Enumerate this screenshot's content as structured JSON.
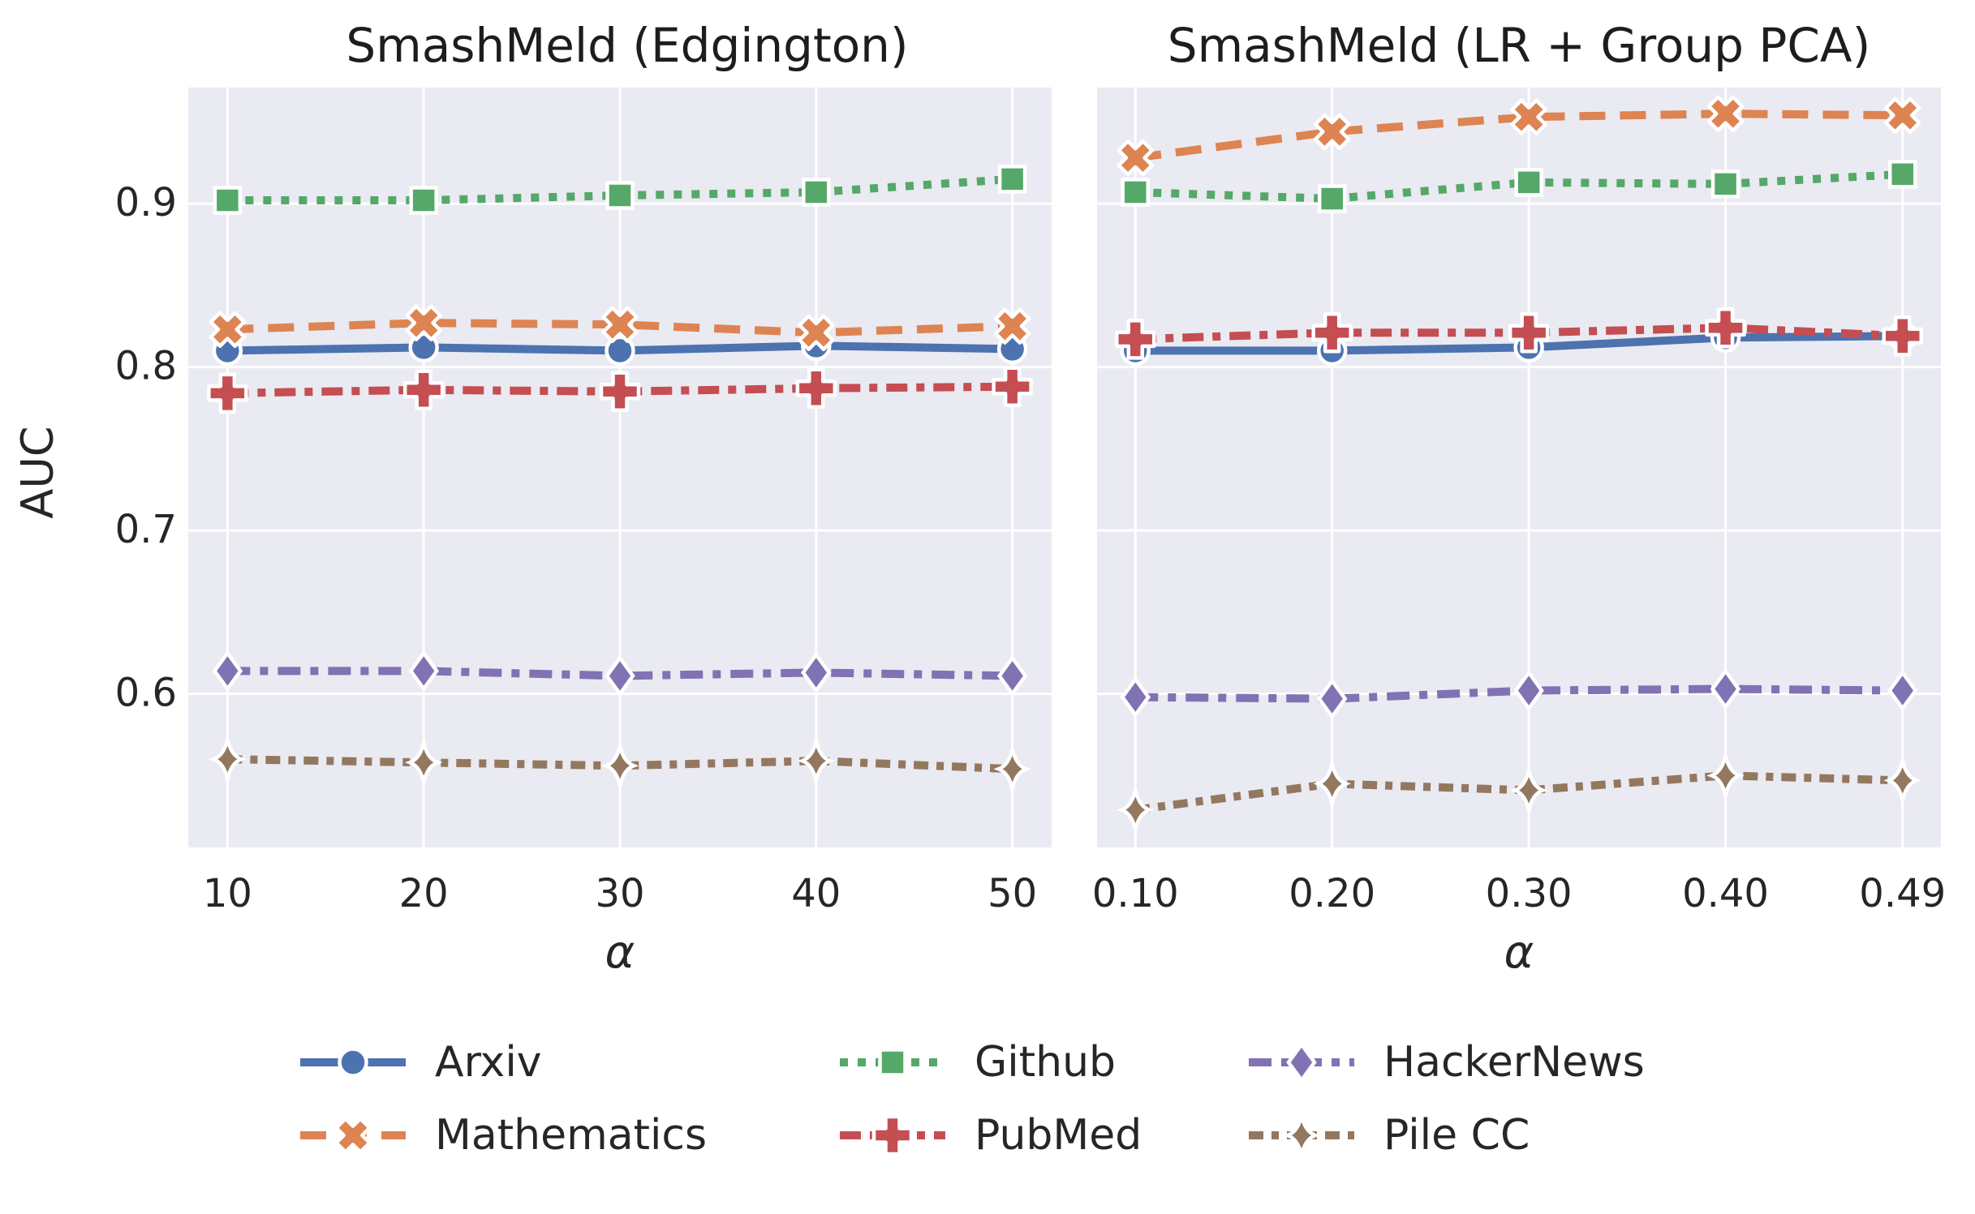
{
  "figure": {
    "background": "#ffffff",
    "panel_background": "#eaeaf2",
    "grid_color": "#ffffff",
    "text_color": "#262626"
  },
  "ylabel": "AUC",
  "series_styles": {
    "Arxiv": {
      "color": "#4C72B0",
      "marker": "circle",
      "dash": ""
    },
    "Mathematics": {
      "color": "#DD8452",
      "marker": "xmark",
      "dash": "32 18"
    },
    "Github": {
      "color": "#55A868",
      "marker": "square",
      "dash": "10 12"
    },
    "PubMed": {
      "color": "#C44E52",
      "marker": "plus",
      "dash": "26 11 10 11"
    },
    "HackerNews": {
      "color": "#8172B3",
      "marker": "diamond",
      "dash": "28 12 10 12"
    },
    "Pile CC": {
      "color": "#937860",
      "marker": "star4",
      "dash": "18 10 9 10"
    }
  },
  "chart_data": [
    {
      "type": "line",
      "title": "SmashMeld (Edgington)",
      "xlabel": "α",
      "ylabel": "AUC",
      "x": [
        10,
        20,
        30,
        40,
        50
      ],
      "xtick_labels": [
        "10",
        "20",
        "30",
        "40",
        "50"
      ],
      "xlim": [
        8,
        52
      ],
      "ylim": [
        0.506,
        0.971
      ],
      "yticks": [
        0.6,
        0.7,
        0.8,
        0.9
      ],
      "ytick_labels": [
        "0.6",
        "0.7",
        "0.8",
        "0.9"
      ],
      "grid": true,
      "series": [
        {
          "name": "Arxiv",
          "values": [
            0.81,
            0.812,
            0.81,
            0.813,
            0.811
          ]
        },
        {
          "name": "Mathematics",
          "values": [
            0.823,
            0.827,
            0.826,
            0.821,
            0.825
          ]
        },
        {
          "name": "Github",
          "values": [
            0.902,
            0.902,
            0.905,
            0.907,
            0.915
          ]
        },
        {
          "name": "PubMed",
          "values": [
            0.784,
            0.786,
            0.785,
            0.787,
            0.788
          ]
        },
        {
          "name": "HackerNews",
          "values": [
            0.614,
            0.614,
            0.611,
            0.613,
            0.611
          ]
        },
        {
          "name": "Pile CC",
          "values": [
            0.56,
            0.558,
            0.556,
            0.559,
            0.554
          ]
        }
      ]
    },
    {
      "type": "line",
      "title": "SmashMeld (LR + Group PCA)",
      "xlabel": "α",
      "ylabel": "AUC",
      "x": [
        0.1,
        0.2,
        0.3,
        0.4,
        0.49
      ],
      "xtick_labels": [
        "0.10",
        "0.20",
        "0.30",
        "0.40",
        "0.49"
      ],
      "xlim": [
        0.0805,
        0.5095
      ],
      "ylim": [
        0.506,
        0.971
      ],
      "yticks": [
        0.6,
        0.7,
        0.8,
        0.9
      ],
      "ytick_labels": [
        "0.6",
        "0.7",
        "0.8",
        "0.9"
      ],
      "grid": true,
      "series": [
        {
          "name": "Arxiv",
          "values": [
            0.81,
            0.81,
            0.812,
            0.818,
            0.819
          ]
        },
        {
          "name": "Mathematics",
          "values": [
            0.928,
            0.944,
            0.953,
            0.955,
            0.954
          ]
        },
        {
          "name": "Github",
          "values": [
            0.907,
            0.903,
            0.913,
            0.912,
            0.918
          ]
        },
        {
          "name": "PubMed",
          "values": [
            0.817,
            0.821,
            0.821,
            0.824,
            0.819
          ]
        },
        {
          "name": "HackerNews",
          "values": [
            0.598,
            0.597,
            0.602,
            0.603,
            0.602
          ]
        },
        {
          "name": "Pile CC",
          "values": [
            0.529,
            0.545,
            0.541,
            0.55,
            0.547
          ]
        }
      ]
    }
  ],
  "legend": {
    "position": "lower center",
    "entries": [
      {
        "label": "Arxiv"
      },
      {
        "label": "Mathematics"
      },
      {
        "label": "Github"
      },
      {
        "label": "PubMed"
      },
      {
        "label": "HackerNews"
      },
      {
        "label": "Pile CC"
      }
    ]
  }
}
